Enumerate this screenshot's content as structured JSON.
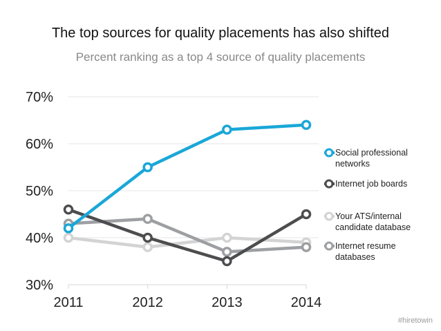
{
  "chart_data": {
    "type": "line",
    "title": "The top sources for quality placements has also shifted",
    "subtitle": "Percent ranking as a top 4 source of quality placements",
    "x": [
      "2011",
      "2012",
      "2013",
      "2014"
    ],
    "ylim": [
      30,
      70
    ],
    "yticks": [
      30,
      40,
      50,
      60,
      70
    ],
    "ytick_labels": [
      "30%",
      "40%",
      "50%",
      "60%",
      "70%"
    ],
    "grid": true,
    "legend_position": "right",
    "series": [
      {
        "name": "Social professional networks",
        "legend_lines": [
          "Social professional",
          "networks"
        ],
        "values": [
          42,
          55,
          63,
          64
        ],
        "color": "#1aa7d8"
      },
      {
        "name": "Internet job boards",
        "legend_lines": [
          "Internet job boards"
        ],
        "values": [
          46,
          40,
          35,
          45
        ],
        "color": "#4d4d4f"
      },
      {
        "name": "Your ATS/internal candidate database",
        "legend_lines": [
          "Your ATS/internal",
          "candidate database"
        ],
        "values": [
          40,
          38,
          40,
          39
        ],
        "color": "#d3d3d3"
      },
      {
        "name": "Internet resume databases",
        "legend_lines": [
          "Internet resume",
          "databases"
        ],
        "values": [
          43,
          44,
          37,
          38
        ],
        "color": "#9d9fa2"
      }
    ]
  },
  "watermark": "#hiretowin"
}
